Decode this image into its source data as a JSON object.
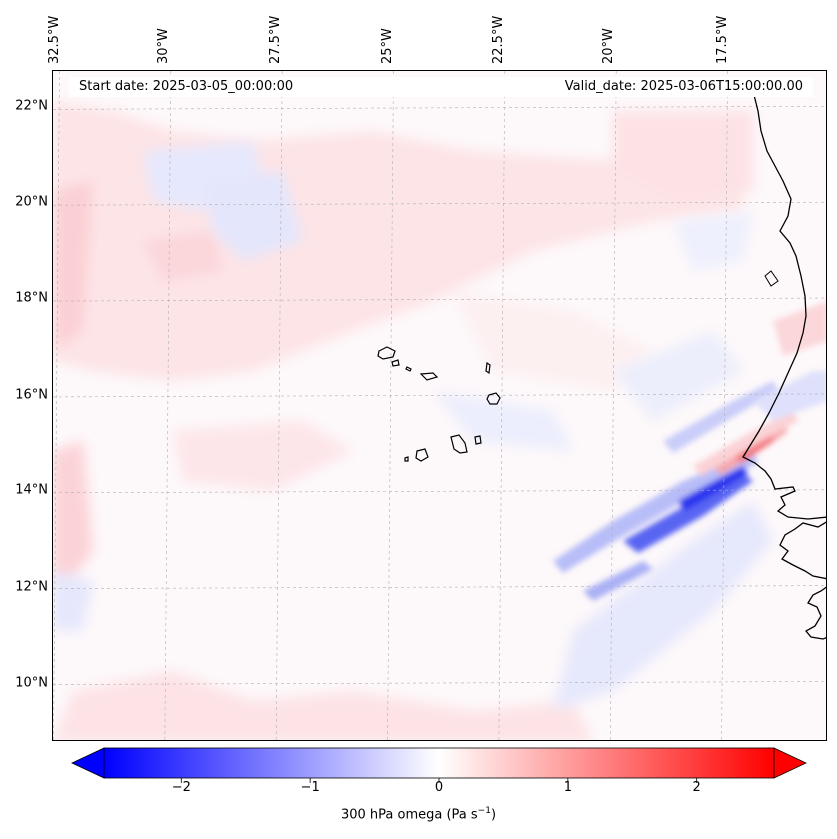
{
  "map": {
    "longitude_labels": [
      "32.5°W",
      "30°W",
      "27.5°W",
      "25°W",
      "22.5°W",
      "20°W",
      "17.5°W"
    ],
    "longitude_values": [
      -32.5,
      -30,
      -27.5,
      -25,
      -22.5,
      -20,
      -17.5
    ],
    "latitude_labels": [
      "22°N",
      "20°N",
      "18°N",
      "16°N",
      "14°N",
      "12°N",
      "10°N"
    ],
    "latitude_values": [
      22,
      20,
      18,
      16,
      14,
      12,
      10
    ],
    "extent": {
      "lon_min": -32.6,
      "lon_max": -15.2,
      "lat_min": 8.8,
      "lat_max": 22.8
    },
    "gridlines": true,
    "field": "300 hPa omega",
    "features": [
      "Cabo Verde islands",
      "West African coastline (Senegal, Gambia, Mauritania)"
    ]
  },
  "info": {
    "start_date": "Start date: 2025-03-05_00:00:00",
    "valid_date": "Valid_date: 2025-03-06T15:00:00.00"
  },
  "colorbar": {
    "label": "300 hPa omega (Pa s",
    "label_superscript": "−1",
    "label_end": ")",
    "ticks": [
      "−2",
      "−1",
      "0",
      "1",
      "2"
    ],
    "tick_values": [
      -2,
      -1,
      0,
      1,
      2
    ],
    "vmin": -2.6,
    "vmax": 2.6,
    "extend": "both",
    "colormap": "bwr",
    "color_min": "#0000ff",
    "color_mid": "#ffffff",
    "color_max": "#ff0000"
  }
}
